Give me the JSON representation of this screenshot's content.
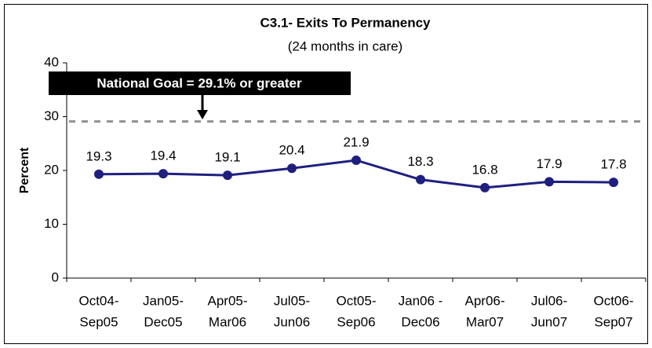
{
  "chart_data": {
    "type": "line",
    "title": "C3.1- Exits To Permanency",
    "subtitle": "(24 months in care)",
    "y_label": "Percent",
    "categories": [
      [
        "Oct04-",
        "Sep05"
      ],
      [
        "Jan05-",
        "Dec05"
      ],
      [
        "Apr05-",
        "Mar06"
      ],
      [
        "Jul05-",
        "Jun06"
      ],
      [
        "Oct05-",
        "Sep06"
      ],
      [
        "Jan06 -",
        "Dec06"
      ],
      [
        "Apr06-",
        "Mar07"
      ],
      [
        "Jul06-",
        "Jun07"
      ],
      [
        "Oct06-",
        "Sep07"
      ]
    ],
    "series": [
      {
        "color": "#1f1f80",
        "values": [
          19.3,
          19.4,
          19.1,
          20.4,
          21.9,
          18.3,
          16.8,
          17.9,
          17.8
        ]
      }
    ],
    "goal": {
      "value": 29.1,
      "color": "#909090",
      "annotation": "National Goal = 29.1% or greater"
    },
    "ylim": [
      0,
      40
    ],
    "yticks": [
      0,
      10,
      20,
      30,
      40
    ],
    "grid": false
  }
}
